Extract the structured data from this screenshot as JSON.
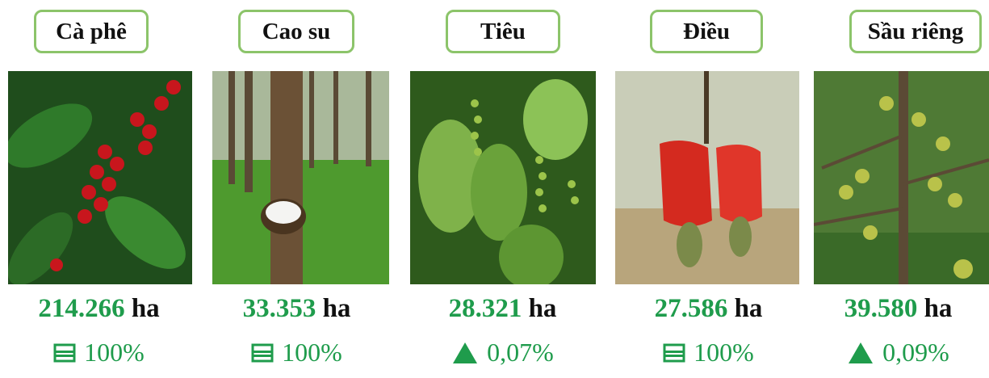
{
  "items": [
    {
      "name": "Cà phê",
      "area": "214.266",
      "unit": "ha",
      "change": "100%"
    },
    {
      "name": "Cao su",
      "area": "33.353",
      "unit": "ha",
      "change": "100%"
    },
    {
      "name": "Tiêu",
      "area": "28.321",
      "unit": "ha",
      "change": "0,07%"
    },
    {
      "name": "Điều",
      "area": "27.586",
      "unit": "ha",
      "change": "100%"
    },
    {
      "name": "Sầu riêng",
      "area": "39.580",
      "unit": "ha",
      "change": "0,09%"
    }
  ]
}
